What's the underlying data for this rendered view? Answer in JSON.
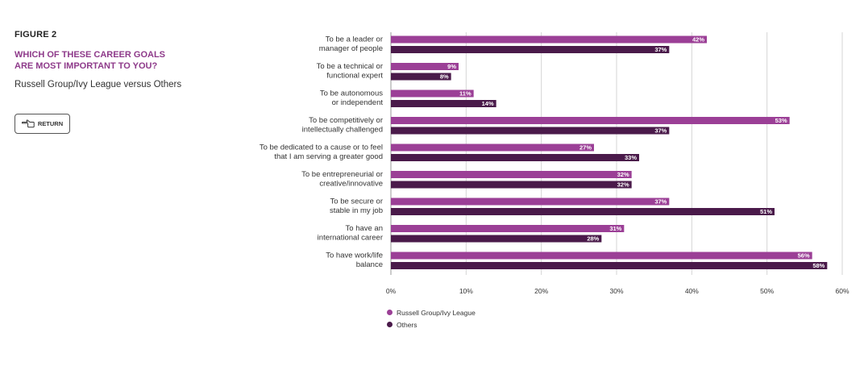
{
  "figure_label": "FIGURE 2",
  "title_lines": [
    "WHICH OF THESE CAREER GOALS",
    "ARE MOST IMPORTANT TO YOU?"
  ],
  "subtitle": "Russell Group/Ivy League versus Others",
  "return_button": {
    "label": "RETURN",
    "icon": "hand-pointing-left-icon"
  },
  "colors": {
    "series1": "#9b3f96",
    "series2": "#4a1a4a",
    "grid": "#d5d5d5"
  },
  "chart_data": {
    "type": "bar",
    "orientation": "horizontal",
    "categories": [
      [
        "To be a leader or",
        "manager of people"
      ],
      [
        "To be a technical or",
        "functional expert"
      ],
      [
        "To be autonomous",
        "or independent"
      ],
      [
        "To be competitively or",
        "intellectually challenged"
      ],
      [
        "To be dedicated to a cause or to feel",
        "that I am serving a greater good"
      ],
      [
        "To be entrepreneurial or",
        "creative/innovative"
      ],
      [
        "To be secure or",
        "stable in my job"
      ],
      [
        "To have an",
        "international career"
      ],
      [
        "To have work/life",
        "balance"
      ]
    ],
    "series": [
      {
        "name": "Russell Group/Ivy League",
        "values": [
          42,
          9,
          11,
          53,
          27,
          32,
          37,
          31,
          56
        ],
        "labels": [
          "42%",
          "9%",
          "11%",
          "53%",
          "27%",
          "32%",
          "37%",
          "31%",
          "56%"
        ]
      },
      {
        "name": "Others",
        "values": [
          37,
          8,
          14,
          37,
          33,
          32,
          51,
          28,
          58
        ],
        "labels": [
          "37%",
          "8%",
          "14%",
          "37%",
          "33%",
          "32%",
          "51%",
          "28%",
          "58%"
        ]
      }
    ],
    "xlim": [
      0,
      60
    ],
    "xticks": [
      "0%",
      "10%",
      "20%",
      "30%",
      "40%",
      "50%",
      "60%"
    ],
    "grid": true,
    "legend_position": "bottom-left"
  }
}
